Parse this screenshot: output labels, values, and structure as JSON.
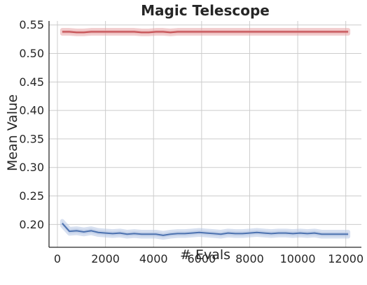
{
  "chart_data": {
    "type": "line",
    "title": "Magic Telescope",
    "xlabel": "# Evals",
    "ylabel": "Mean Value",
    "xlim": [
      -350,
      12650
    ],
    "ylim": [
      0.16,
      0.557
    ],
    "xticks": [
      0,
      2000,
      4000,
      6000,
      8000,
      10000,
      12000
    ],
    "xtick_labels": [
      "0",
      "2000",
      "4000",
      "6000",
      "8000",
      "10000",
      "12000"
    ],
    "yticks": [
      0.2,
      0.25,
      0.3,
      0.35,
      0.4,
      0.45,
      0.5,
      0.55
    ],
    "ytick_labels": [
      "0.20",
      "0.25",
      "0.30",
      "0.35",
      "0.40",
      "0.45",
      "0.50",
      "0.55"
    ],
    "grid": true,
    "series": [
      {
        "color": "#c44e52",
        "band_color": "#e8a5a8",
        "band_halfwidth": 0.003,
        "x": [
          200,
          500,
          800,
          1100,
          1400,
          1700,
          2000,
          2300,
          2600,
          2900,
          3200,
          3500,
          3800,
          4100,
          4400,
          4700,
          5000,
          5300,
          5600,
          5900,
          6200,
          6500,
          6800,
          7100,
          7400,
          7700,
          8000,
          8300,
          8600,
          8900,
          9200,
          9500,
          9800,
          10100,
          10400,
          10700,
          11000,
          11300,
          11600,
          11900,
          12100
        ],
        "y": [
          0.538,
          0.538,
          0.537,
          0.537,
          0.538,
          0.538,
          0.538,
          0.538,
          0.538,
          0.538,
          0.538,
          0.537,
          0.537,
          0.538,
          0.538,
          0.537,
          0.538,
          0.538,
          0.538,
          0.538,
          0.538,
          0.538,
          0.538,
          0.538,
          0.538,
          0.538,
          0.538,
          0.538,
          0.538,
          0.538,
          0.538,
          0.538,
          0.538,
          0.538,
          0.538,
          0.538,
          0.538,
          0.538,
          0.538,
          0.538,
          0.538
        ]
      },
      {
        "color": "#4c72b0",
        "band_color": "#b7c6e3",
        "band_halfwidth": 0.004,
        "x": [
          200,
          500,
          800,
          1100,
          1400,
          1700,
          2000,
          2300,
          2600,
          2900,
          3200,
          3500,
          3800,
          4100,
          4400,
          4700,
          5000,
          5300,
          5600,
          5900,
          6200,
          6500,
          6800,
          7100,
          7400,
          7700,
          8000,
          8300,
          8600,
          8900,
          9200,
          9500,
          9800,
          10100,
          10400,
          10700,
          11000,
          11300,
          11600,
          11900,
          12100
        ],
        "y": [
          0.202,
          0.188,
          0.189,
          0.187,
          0.189,
          0.186,
          0.185,
          0.184,
          0.185,
          0.183,
          0.184,
          0.183,
          0.183,
          0.183,
          0.181,
          0.183,
          0.184,
          0.184,
          0.185,
          0.186,
          0.185,
          0.184,
          0.183,
          0.185,
          0.184,
          0.184,
          0.185,
          0.186,
          0.185,
          0.184,
          0.185,
          0.185,
          0.184,
          0.185,
          0.184,
          0.185,
          0.183,
          0.183,
          0.183,
          0.183,
          0.183
        ]
      }
    ]
  }
}
